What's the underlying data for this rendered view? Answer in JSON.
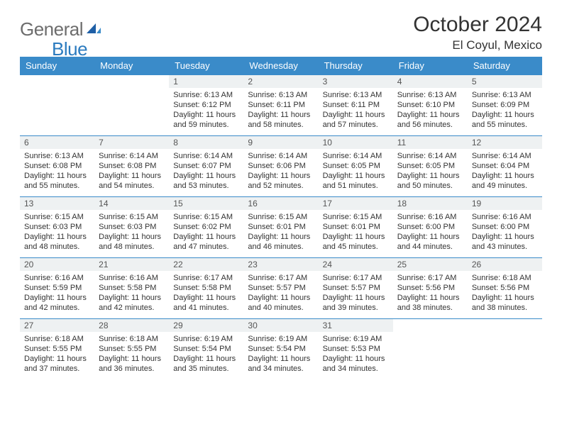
{
  "brand": {
    "gray": "General",
    "blue": "Blue"
  },
  "title": "October 2024",
  "location": "El Coyul, Mexico",
  "colors": {
    "header_bg": "#3a8bc9",
    "header_fg": "#ffffff",
    "rule": "#3a8bc9",
    "daynum_bg": "#eef1f2",
    "page_bg": "#ffffff",
    "brand_gray": "#6d6d6d",
    "brand_blue": "#2b7bbf"
  },
  "dayNames": [
    "Sunday",
    "Monday",
    "Tuesday",
    "Wednesday",
    "Thursday",
    "Friday",
    "Saturday"
  ],
  "grid": {
    "startWeekday": 2,
    "daysInMonth": 31
  },
  "days": {
    "1": {
      "sunrise": "6:13 AM",
      "sunset": "6:12 PM",
      "daylight": "11 hours and 59 minutes."
    },
    "2": {
      "sunrise": "6:13 AM",
      "sunset": "6:11 PM",
      "daylight": "11 hours and 58 minutes."
    },
    "3": {
      "sunrise": "6:13 AM",
      "sunset": "6:11 PM",
      "daylight": "11 hours and 57 minutes."
    },
    "4": {
      "sunrise": "6:13 AM",
      "sunset": "6:10 PM",
      "daylight": "11 hours and 56 minutes."
    },
    "5": {
      "sunrise": "6:13 AM",
      "sunset": "6:09 PM",
      "daylight": "11 hours and 55 minutes."
    },
    "6": {
      "sunrise": "6:13 AM",
      "sunset": "6:08 PM",
      "daylight": "11 hours and 55 minutes."
    },
    "7": {
      "sunrise": "6:14 AM",
      "sunset": "6:08 PM",
      "daylight": "11 hours and 54 minutes."
    },
    "8": {
      "sunrise": "6:14 AM",
      "sunset": "6:07 PM",
      "daylight": "11 hours and 53 minutes."
    },
    "9": {
      "sunrise": "6:14 AM",
      "sunset": "6:06 PM",
      "daylight": "11 hours and 52 minutes."
    },
    "10": {
      "sunrise": "6:14 AM",
      "sunset": "6:05 PM",
      "daylight": "11 hours and 51 minutes."
    },
    "11": {
      "sunrise": "6:14 AM",
      "sunset": "6:05 PM",
      "daylight": "11 hours and 50 minutes."
    },
    "12": {
      "sunrise": "6:14 AM",
      "sunset": "6:04 PM",
      "daylight": "11 hours and 49 minutes."
    },
    "13": {
      "sunrise": "6:15 AM",
      "sunset": "6:03 PM",
      "daylight": "11 hours and 48 minutes."
    },
    "14": {
      "sunrise": "6:15 AM",
      "sunset": "6:03 PM",
      "daylight": "11 hours and 48 minutes."
    },
    "15": {
      "sunrise": "6:15 AM",
      "sunset": "6:02 PM",
      "daylight": "11 hours and 47 minutes."
    },
    "16": {
      "sunrise": "6:15 AM",
      "sunset": "6:01 PM",
      "daylight": "11 hours and 46 minutes."
    },
    "17": {
      "sunrise": "6:15 AM",
      "sunset": "6:01 PM",
      "daylight": "11 hours and 45 minutes."
    },
    "18": {
      "sunrise": "6:16 AM",
      "sunset": "6:00 PM",
      "daylight": "11 hours and 44 minutes."
    },
    "19": {
      "sunrise": "6:16 AM",
      "sunset": "6:00 PM",
      "daylight": "11 hours and 43 minutes."
    },
    "20": {
      "sunrise": "6:16 AM",
      "sunset": "5:59 PM",
      "daylight": "11 hours and 42 minutes."
    },
    "21": {
      "sunrise": "6:16 AM",
      "sunset": "5:58 PM",
      "daylight": "11 hours and 42 minutes."
    },
    "22": {
      "sunrise": "6:17 AM",
      "sunset": "5:58 PM",
      "daylight": "11 hours and 41 minutes."
    },
    "23": {
      "sunrise": "6:17 AM",
      "sunset": "5:57 PM",
      "daylight": "11 hours and 40 minutes."
    },
    "24": {
      "sunrise": "6:17 AM",
      "sunset": "5:57 PM",
      "daylight": "11 hours and 39 minutes."
    },
    "25": {
      "sunrise": "6:17 AM",
      "sunset": "5:56 PM",
      "daylight": "11 hours and 38 minutes."
    },
    "26": {
      "sunrise": "6:18 AM",
      "sunset": "5:56 PM",
      "daylight": "11 hours and 38 minutes."
    },
    "27": {
      "sunrise": "6:18 AM",
      "sunset": "5:55 PM",
      "daylight": "11 hours and 37 minutes."
    },
    "28": {
      "sunrise": "6:18 AM",
      "sunset": "5:55 PM",
      "daylight": "11 hours and 36 minutes."
    },
    "29": {
      "sunrise": "6:19 AM",
      "sunset": "5:54 PM",
      "daylight": "11 hours and 35 minutes."
    },
    "30": {
      "sunrise": "6:19 AM",
      "sunset": "5:54 PM",
      "daylight": "11 hours and 34 minutes."
    },
    "31": {
      "sunrise": "6:19 AM",
      "sunset": "5:53 PM",
      "daylight": "11 hours and 34 minutes."
    }
  },
  "labels": {
    "sunrise": "Sunrise:",
    "sunset": "Sunset:",
    "daylight": "Daylight:"
  }
}
